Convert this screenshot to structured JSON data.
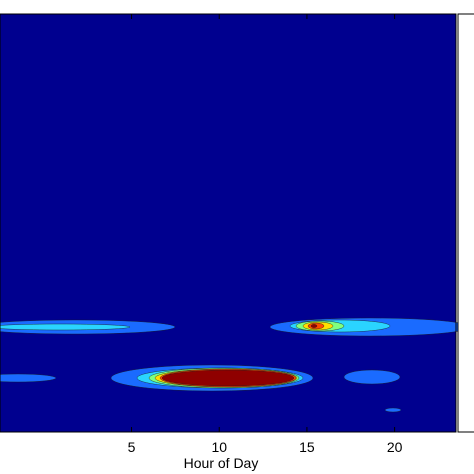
{
  "chart_data": {
    "type": "heatmap",
    "subtype": "filled-contour",
    "title": "",
    "xlabel": "Hour of Day",
    "ylabel": "",
    "xlim": [
      -2.5,
      23.5
    ],
    "xticks": [
      5,
      10,
      15,
      20
    ],
    "xtick_labels": [
      "5",
      "10",
      "15",
      "20"
    ],
    "grid": false,
    "colormap": "jet",
    "colorbar": "right, partially visible",
    "colors": {
      "background": "#00008f",
      "level1": "#1a6bff",
      "level2": "#2ad4ff",
      "level3": "#7fff7f",
      "level4": "#ffdf00",
      "level5": "#ff4a00",
      "level6": "#8f0000"
    },
    "regions": [
      {
        "x_range": [
          -2.5,
          9.5
        ],
        "peak_x": 3.0,
        "band": "middle",
        "max_level": 2
      },
      {
        "x_range": [
          7.0,
          15.5
        ],
        "peak_x": 12.0,
        "band": "lower",
        "max_level": 6
      },
      {
        "x_range": [
          15.0,
          23.5
        ],
        "peak_x": 16.8,
        "band": "middle",
        "max_level": 6
      },
      {
        "x_range": [
          -2.5,
          1.5
        ],
        "peak_x": -1.0,
        "band": "lower",
        "max_level": 1
      },
      {
        "x_range": [
          17.8,
          20.8
        ],
        "peak_x": 19.3,
        "band": "lower",
        "max_level": 1
      }
    ]
  }
}
